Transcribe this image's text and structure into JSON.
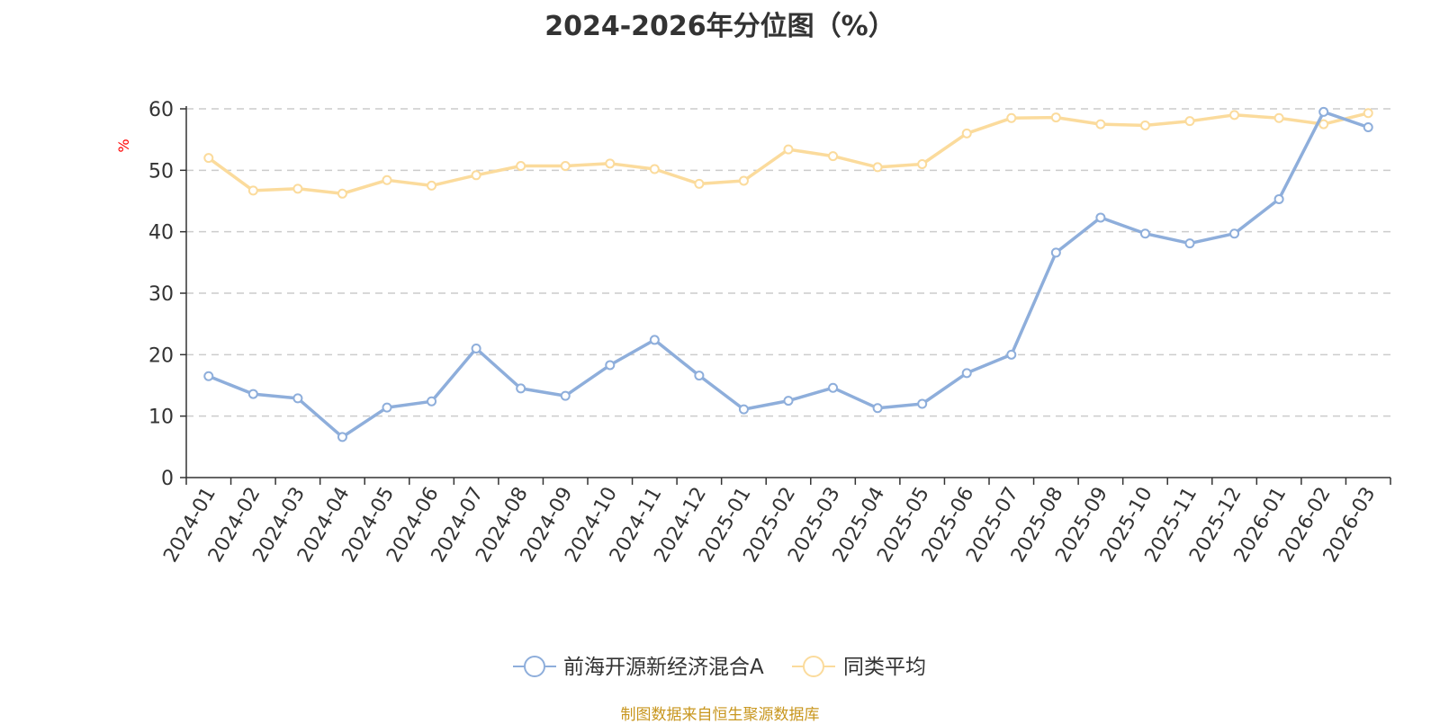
{
  "chart_data": {
    "type": "line",
    "title": "2024-2026年分位图（%）",
    "ylabel": "%",
    "ylim": [
      0,
      60
    ],
    "yticks": [
      0,
      10,
      20,
      30,
      40,
      50,
      60
    ],
    "grid": true,
    "legend_position": "bottom-center",
    "categories": [
      "2024-01",
      "2024-02",
      "2024-03",
      "2024-04",
      "2024-05",
      "2024-06",
      "2024-07",
      "2024-08",
      "2024-09",
      "2024-10",
      "2024-11",
      "2024-12",
      "2025-01",
      "2025-02",
      "2025-03",
      "2025-04",
      "2025-05",
      "2025-06",
      "2025-07",
      "2025-08",
      "2025-09",
      "2025-10",
      "2025-11",
      "2025-12",
      "2026-01",
      "2026-02",
      "2026-03"
    ],
    "series": [
      {
        "name": "前海开源新经济混合A",
        "color": "#8eaedb",
        "values": [
          16.5,
          13.6,
          12.9,
          6.6,
          11.4,
          12.4,
          21.0,
          14.5,
          13.3,
          18.3,
          22.4,
          16.6,
          11.1,
          12.5,
          14.6,
          11.3,
          12.0,
          17.0,
          20.0,
          36.6,
          42.3,
          39.7,
          38.1,
          39.7,
          45.3,
          59.5,
          57.0
        ]
      },
      {
        "name": "同类平均",
        "color": "#fbdb9c",
        "values": [
          52.0,
          46.7,
          47.0,
          46.2,
          48.4,
          47.5,
          49.2,
          50.7,
          50.7,
          51.1,
          50.2,
          47.8,
          48.3,
          53.4,
          52.3,
          50.5,
          51.0,
          56.0,
          58.5,
          58.6,
          57.5,
          57.3,
          58.0,
          59.0,
          58.5,
          57.5,
          59.3
        ]
      }
    ],
    "source_note": "制图数据来自恒生聚源数据库"
  },
  "colors": {
    "axis": "#333333",
    "grid": "#cccccc",
    "unit_label": "#ff0000",
    "source_note": "#c8961e"
  }
}
